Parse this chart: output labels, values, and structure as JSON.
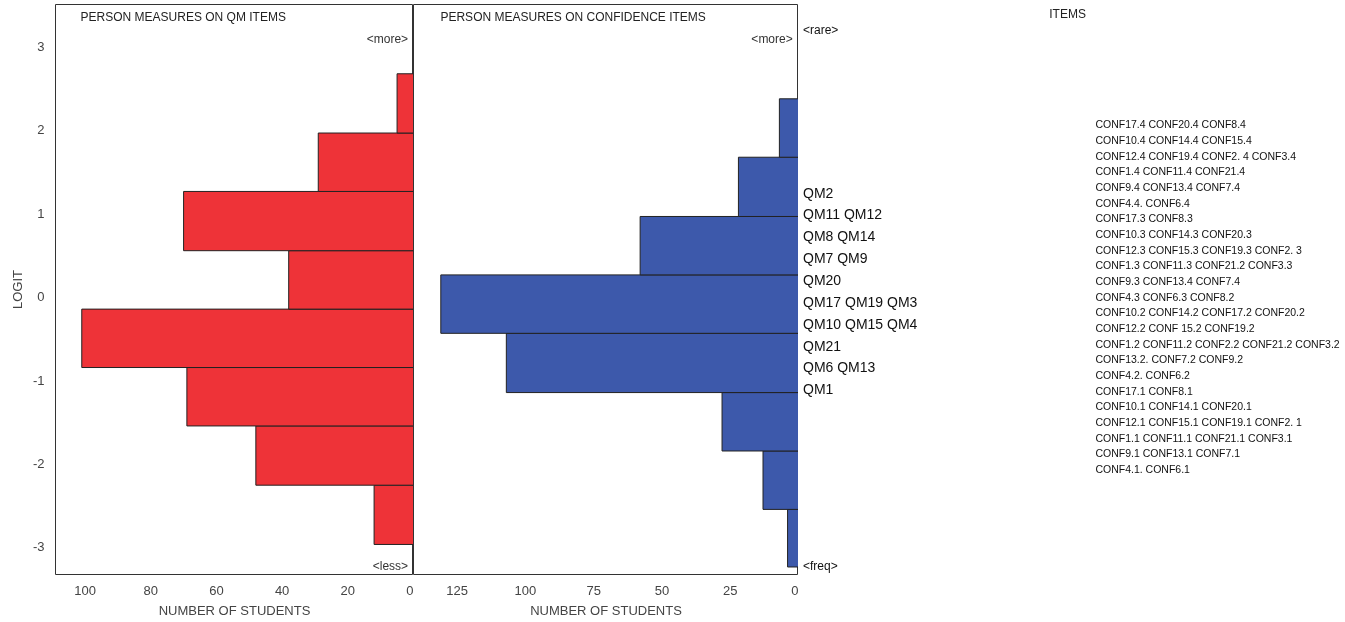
{
  "chart_data": [
    {
      "type": "histogram",
      "orientation": "horizontal",
      "title": "PERSON MEASURES ON QM ITEMS",
      "xlabel": "NUMBER OF STUDENTS",
      "ylabel": "LOGIT",
      "bins": [
        -2.97,
        -2.26,
        -1.55,
        -0.85,
        -0.15,
        0.55,
        1.26,
        1.96,
        2.67
      ],
      "values": [
        12,
        48,
        69,
        101,
        38,
        70,
        29,
        5
      ],
      "color": "#ee3338",
      "xlim": [
        109,
        0
      ],
      "xticks": [
        100,
        80,
        60,
        40,
        20,
        0
      ],
      "ylim": [
        -3.33,
        3.5
      ],
      "yticks": [
        -3,
        -2,
        -1,
        0,
        1,
        2,
        3
      ],
      "grid": false,
      "annotations": [
        "<more>",
        "<less>"
      ]
    },
    {
      "type": "histogram",
      "orientation": "horizontal",
      "title": "PERSON MEASURES ON CONFIDENCE ITEMS",
      "xlabel": "NUMBER OF STUDENTS",
      "bins": [
        -3.24,
        -2.55,
        -1.85,
        -1.15,
        -0.44,
        0.26,
        0.96,
        1.67,
        2.37
      ],
      "values": [
        4,
        13,
        28,
        107,
        131,
        58,
        22,
        7
      ],
      "color": "#3d59ab",
      "xlim": [
        141,
        0
      ],
      "xticks": [
        125,
        100,
        75,
        50,
        25,
        0
      ],
      "ylim": [
        -3.33,
        3.5
      ],
      "tick_labels": "x",
      "grid": false,
      "annotations": [
        "<more>"
      ]
    },
    {
      "type": "other",
      "annotations": [
        "<rare>",
        "QM2",
        "QM11 QM12",
        "QM8 QM14",
        "QM7 QM9",
        "QM20",
        "QM17 QM19 QM3",
        "QM10 QM15 QM4",
        "QM21",
        "QM6 QM13",
        "QM1",
        "<freq>"
      ]
    },
    {
      "type": "other",
      "title": "ITEMS",
      "annotations": [
        "CONF17.4 CONF20.4 CONF8.4",
        "CONF10.4 CONF14.4 CONF15.4",
        "CONF12.4 CONF19.4 CONF2. 4 CONF3.4",
        "CONF1.4 CONF11.4 CONF21.4",
        "CONF9.4 CONF13.4 CONF7.4",
        "CONF4.4. CONF6.4",
        "CONF17.3 CONF8.3",
        "CONF10.3 CONF14.3 CONF20.3",
        "CONF12.3 CONF15.3 CONF19.3 CONF2. 3",
        "CONF1.3 CONF11.3 CONF21.2 CONF3.3",
        "CONF9.3 CONF13.4 CONF7.4",
        "CONF4.3 CONF6.3 CONF8.2",
        "CONF10.2 CONF14.2 CONF17.2 CONF20.2",
        "CONF12.2 CONF 15.2 CONF19.2",
        "CONF1.2 CONF11.2 CONF2.2 CONF21.2 CONF3.2",
        "CONF13.2. CONF7.2 CONF9.2",
        "CONF4.2. CONF6.2",
        "CONF17.1 CONF8.1",
        "CONF10.1 CONF14.1 CONF20.1",
        "CONF12.1 CONF15.1 CONF19.1 CONF2. 1",
        "CONF1.1 CONF11.1 CONF21.1 CONF3.1",
        "CONF9.1 CONF13.1 CONF7.1",
        "CONF4.1. CONF6.1"
      ]
    }
  ]
}
